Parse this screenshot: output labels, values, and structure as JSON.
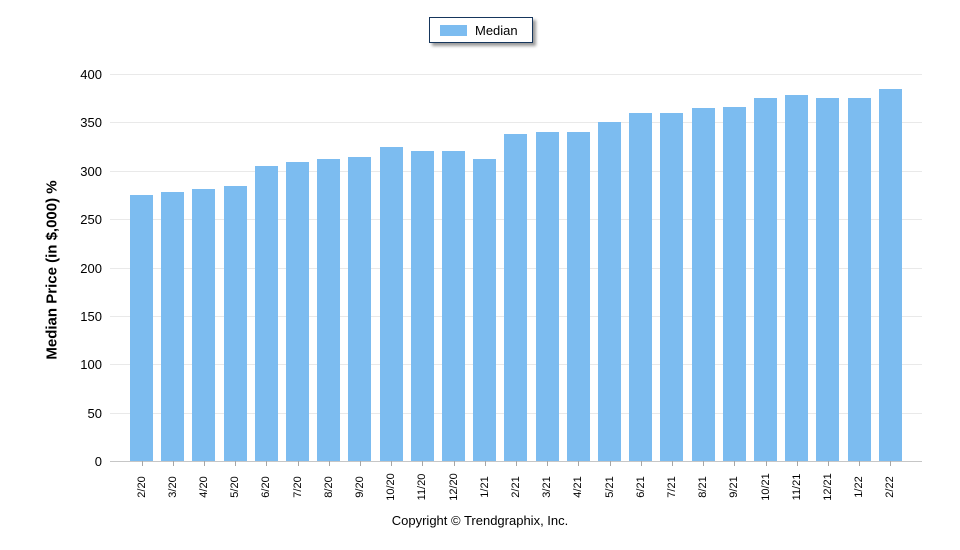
{
  "legend": {
    "label": "Median"
  },
  "y_axis_title": "Median Price (in $,000) %",
  "footer": "Copyright © Trendgraphix, Inc.",
  "colors": {
    "bar": "#7CBCF0",
    "legend_border": "#16365C",
    "gridline": "#E9E9E9",
    "axis_line": "#C6C6C6",
    "tick": "#A6A6A6"
  },
  "chart_data": {
    "type": "bar",
    "title": "",
    "series_name": "Median",
    "categories": [
      "2/20",
      "3/20",
      "4/20",
      "5/20",
      "6/20",
      "7/20",
      "8/20",
      "9/20",
      "10/20",
      "11/20",
      "12/20",
      "1/21",
      "2/21",
      "3/21",
      "4/21",
      "5/21",
      "6/21",
      "7/21",
      "8/21",
      "9/21",
      "10/21",
      "11/21",
      "12/21",
      "1/22",
      "2/22"
    ],
    "values": [
      275,
      278,
      281,
      284,
      305,
      309,
      312,
      314,
      325,
      320,
      320,
      312,
      338,
      340,
      340,
      350,
      360,
      360,
      365,
      366,
      375,
      378,
      375,
      375,
      385
    ],
    "xlabel": "",
    "ylabel": "Median Price (in $,000) %",
    "ylim": [
      0,
      400
    ],
    "ytick_step": 50,
    "grid": true,
    "legend_position": "top-center",
    "bar_color": "#7CBCF0"
  }
}
